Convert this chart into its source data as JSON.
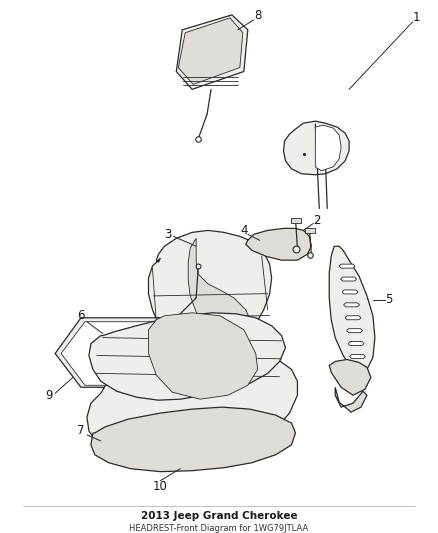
{
  "title": "2013 Jeep Grand Cherokee",
  "subtitle": "HEADREST-Front Diagram for 1WG79JTLAA",
  "bg": "#ffffff",
  "lc": "#2a2a2a",
  "fill_light": "#f0eeeb",
  "fill_mid": "#e0ddd8",
  "fill_dark": "#c8c4bc",
  "fill_frame": "#d8d4cc"
}
